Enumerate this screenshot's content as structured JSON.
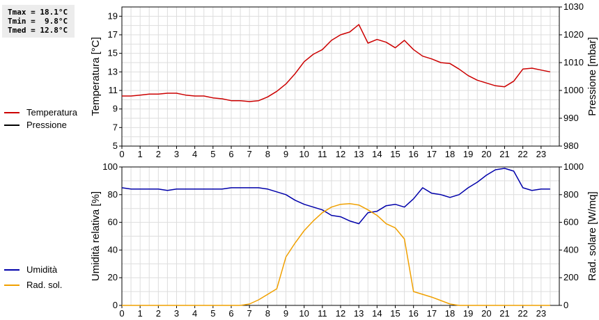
{
  "stats": [
    {
      "label": "Tmax",
      "value": "18.1°C"
    },
    {
      "label": "Tmin",
      "value": " 9.8°C"
    },
    {
      "label": "Tmed",
      "value": "12.8°C"
    }
  ],
  "colors": {
    "temperatura": "#cc0000",
    "pressione": "#000000",
    "umidita": "#0000aa",
    "rad_sol": "#f0a000"
  },
  "legend_top": [
    {
      "name": "Temperatura",
      "color": "#cc0000"
    },
    {
      "name": "Pressione",
      "color": "#000000"
    }
  ],
  "legend_bottom": [
    {
      "name": "Umidità",
      "color": "#0000aa"
    },
    {
      "name": "Rad. sol.",
      "color": "#f0a000"
    }
  ],
  "chart_data": [
    {
      "type": "line",
      "ylabel": "Temperatura [°C]",
      "y2label": "Pressione [mbar]",
      "ylim": [
        5,
        20
      ],
      "y2lim": [
        980,
        1030
      ],
      "xlim": [
        0,
        24
      ],
      "yticks": [
        5,
        7,
        9,
        11,
        13,
        15,
        17,
        19
      ],
      "y2ticks": [
        980,
        990,
        1000,
        1010,
        1020,
        1030
      ],
      "xticks": [
        0,
        1,
        2,
        3,
        4,
        5,
        6,
        7,
        8,
        9,
        10,
        11,
        12,
        13,
        14,
        15,
        16,
        17,
        18,
        19,
        20,
        21,
        22,
        23
      ],
      "grid": true,
      "series": [
        {
          "name": "Temperatura",
          "color": "#cc0000",
          "x": [
            0,
            0.5,
            1,
            1.5,
            2,
            2.5,
            3,
            3.5,
            4,
            4.5,
            5,
            5.5,
            6,
            6.5,
            7,
            7.5,
            8,
            8.5,
            9,
            9.5,
            10,
            10.5,
            11,
            11.5,
            12,
            12.5,
            13,
            13.5,
            14,
            14.5,
            15,
            15.5,
            16,
            16.5,
            17,
            17.5,
            18,
            18.5,
            19,
            19.5,
            20,
            20.5,
            21,
            21.5,
            22,
            22.5,
            23,
            23.5
          ],
          "y": [
            10.4,
            10.4,
            10.5,
            10.6,
            10.6,
            10.7,
            10.7,
            10.5,
            10.4,
            10.4,
            10.2,
            10.1,
            9.9,
            9.9,
            9.8,
            9.9,
            10.3,
            10.9,
            11.7,
            12.8,
            14.1,
            14.9,
            15.4,
            16.4,
            17.0,
            17.3,
            18.1,
            16.1,
            16.5,
            16.2,
            15.6,
            16.4,
            15.4,
            14.7,
            14.4,
            14.0,
            13.9,
            13.3,
            12.6,
            12.1,
            11.8,
            11.5,
            11.4,
            12.0,
            13.3,
            13.4,
            13.2,
            13.0
          ]
        }
      ]
    },
    {
      "type": "line",
      "ylabel": "Umidità relativa [%]",
      "y2label": "Rad. solare [W/mq]",
      "ylim": [
        0,
        100
      ],
      "y2lim": [
        0,
        1000
      ],
      "xlim": [
        0,
        24
      ],
      "yticks": [
        0,
        20,
        40,
        60,
        80,
        100
      ],
      "y2ticks": [
        0,
        200,
        400,
        600,
        800,
        1000
      ],
      "xticks": [
        0,
        1,
        2,
        3,
        4,
        5,
        6,
        7,
        8,
        9,
        10,
        11,
        12,
        13,
        14,
        15,
        16,
        17,
        18,
        19,
        20,
        21,
        22,
        23
      ],
      "grid": true,
      "series": [
        {
          "name": "Umidità",
          "color": "#0000aa",
          "axis": "left",
          "x": [
            0,
            0.5,
            1,
            1.5,
            2,
            2.5,
            3,
            3.5,
            4,
            4.5,
            5,
            5.5,
            6,
            6.5,
            7,
            7.5,
            8,
            8.5,
            9,
            9.5,
            10,
            10.5,
            11,
            11.5,
            12,
            12.5,
            13,
            13.5,
            14,
            14.5,
            15,
            15.5,
            16,
            16.5,
            17,
            17.5,
            18,
            18.5,
            19,
            19.5,
            20,
            20.5,
            21,
            21.5,
            22,
            22.5,
            23,
            23.5
          ],
          "y": [
            85,
            84,
            84,
            84,
            84,
            83,
            84,
            84,
            84,
            84,
            84,
            84,
            85,
            85,
            85,
            85,
            84,
            82,
            80,
            76,
            73,
            71,
            69,
            65,
            64,
            61,
            59,
            67,
            68,
            72,
            73,
            71,
            77,
            85,
            81,
            80,
            78,
            80,
            85,
            89,
            94,
            98,
            99,
            97,
            85,
            83,
            84,
            84
          ]
        },
        {
          "name": "Rad. sol.",
          "color": "#f0a000",
          "axis": "right",
          "x": [
            0,
            0.5,
            1,
            1.5,
            2,
            2.5,
            3,
            3.5,
            4,
            4.5,
            5,
            5.5,
            6,
            6.5,
            7,
            7.5,
            8,
            8.5,
            9,
            9.5,
            10,
            10.5,
            11,
            11.5,
            12,
            12.5,
            13,
            13.5,
            14,
            14.5,
            15,
            15.5,
            16,
            16.5,
            17,
            17.5,
            18,
            18.5,
            19,
            19.5,
            20,
            20.5,
            21,
            21.5,
            22,
            22.5,
            23,
            23.5
          ],
          "y": [
            0,
            0,
            0,
            0,
            0,
            0,
            0,
            0,
            0,
            0,
            0,
            0,
            0,
            0,
            10,
            40,
            80,
            120,
            350,
            450,
            540,
            610,
            670,
            710,
            730,
            735,
            725,
            690,
            650,
            590,
            560,
            480,
            100,
            80,
            60,
            35,
            10,
            0,
            0,
            0,
            0,
            0,
            0,
            0,
            0,
            0,
            0,
            0
          ]
        }
      ]
    }
  ]
}
